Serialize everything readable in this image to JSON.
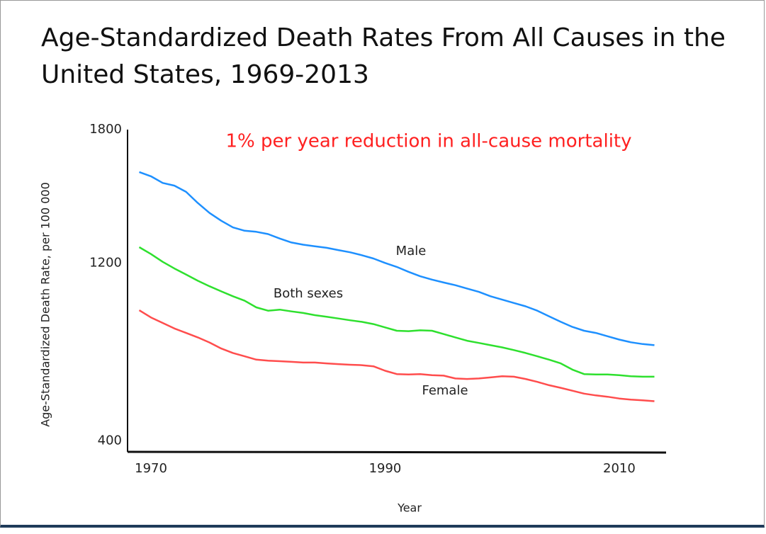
{
  "chart_data": {
    "type": "line",
    "title": "Age-Standardized Death Rates From All Causes in the United States, 1969-2013",
    "annotation": "1% per year reduction in all-cause mortality",
    "xlabel": "Year",
    "ylabel": "Age-Standardized Death Rate, per 100 000",
    "x": [
      1969,
      1970,
      1971,
      1972,
      1973,
      1974,
      1975,
      1976,
      1977,
      1978,
      1979,
      1980,
      1981,
      1982,
      1983,
      1984,
      1985,
      1986,
      1987,
      1988,
      1989,
      1990,
      1991,
      1992,
      1993,
      1994,
      1995,
      1996,
      1997,
      1998,
      1999,
      2000,
      2001,
      2002,
      2003,
      2004,
      2005,
      2006,
      2007,
      2008,
      2009,
      2010,
      2011,
      2012,
      2013
    ],
    "series": [
      {
        "name": "Male",
        "color": "#1e90ff",
        "values": [
          1609,
          1590,
          1560,
          1548,
          1520,
          1470,
          1425,
          1390,
          1360,
          1345,
          1340,
          1330,
          1310,
          1292,
          1282,
          1275,
          1268,
          1258,
          1248,
          1235,
          1220,
          1200,
          1182,
          1160,
          1140,
          1125,
          1112,
          1100,
          1085,
          1070,
          1050,
          1035,
          1020,
          1005,
          985,
          960,
          935,
          912,
          895,
          885,
          870,
          855,
          843,
          835,
          830
        ]
      },
      {
        "name": "Both sexes",
        "color": "#2ee02e",
        "values": [
          1271,
          1240,
          1205,
          1175,
          1148,
          1120,
          1095,
          1072,
          1050,
          1030,
          1000,
          985,
          990,
          982,
          975,
          965,
          958,
          950,
          942,
          935,
          925,
          910,
          895,
          893,
          897,
          895,
          880,
          865,
          850,
          840,
          830,
          820,
          808,
          795,
          780,
          765,
          748,
          720,
          700,
          698,
          698,
          695,
          690,
          688,
          688
        ]
      },
      {
        "name": "Female",
        "color": "#ff4d4d",
        "values": [
          987,
          955,
          930,
          905,
          885,
          865,
          842,
          815,
          795,
          780,
          765,
          760,
          758,
          755,
          752,
          752,
          748,
          745,
          742,
          740,
          735,
          715,
          700,
          698,
          700,
          695,
          693,
          680,
          678,
          680,
          685,
          690,
          688,
          678,
          665,
          650,
          638,
          625,
          612,
          604,
          598,
          590,
          585,
          582,
          578
        ]
      }
    ],
    "xlim": [
      1968,
      2014
    ],
    "xticks": [
      1970,
      1990,
      2010
    ],
    "ylim": [
      350,
      1800
    ],
    "yticks": [
      400,
      1200,
      1800
    ],
    "grid": false
  }
}
